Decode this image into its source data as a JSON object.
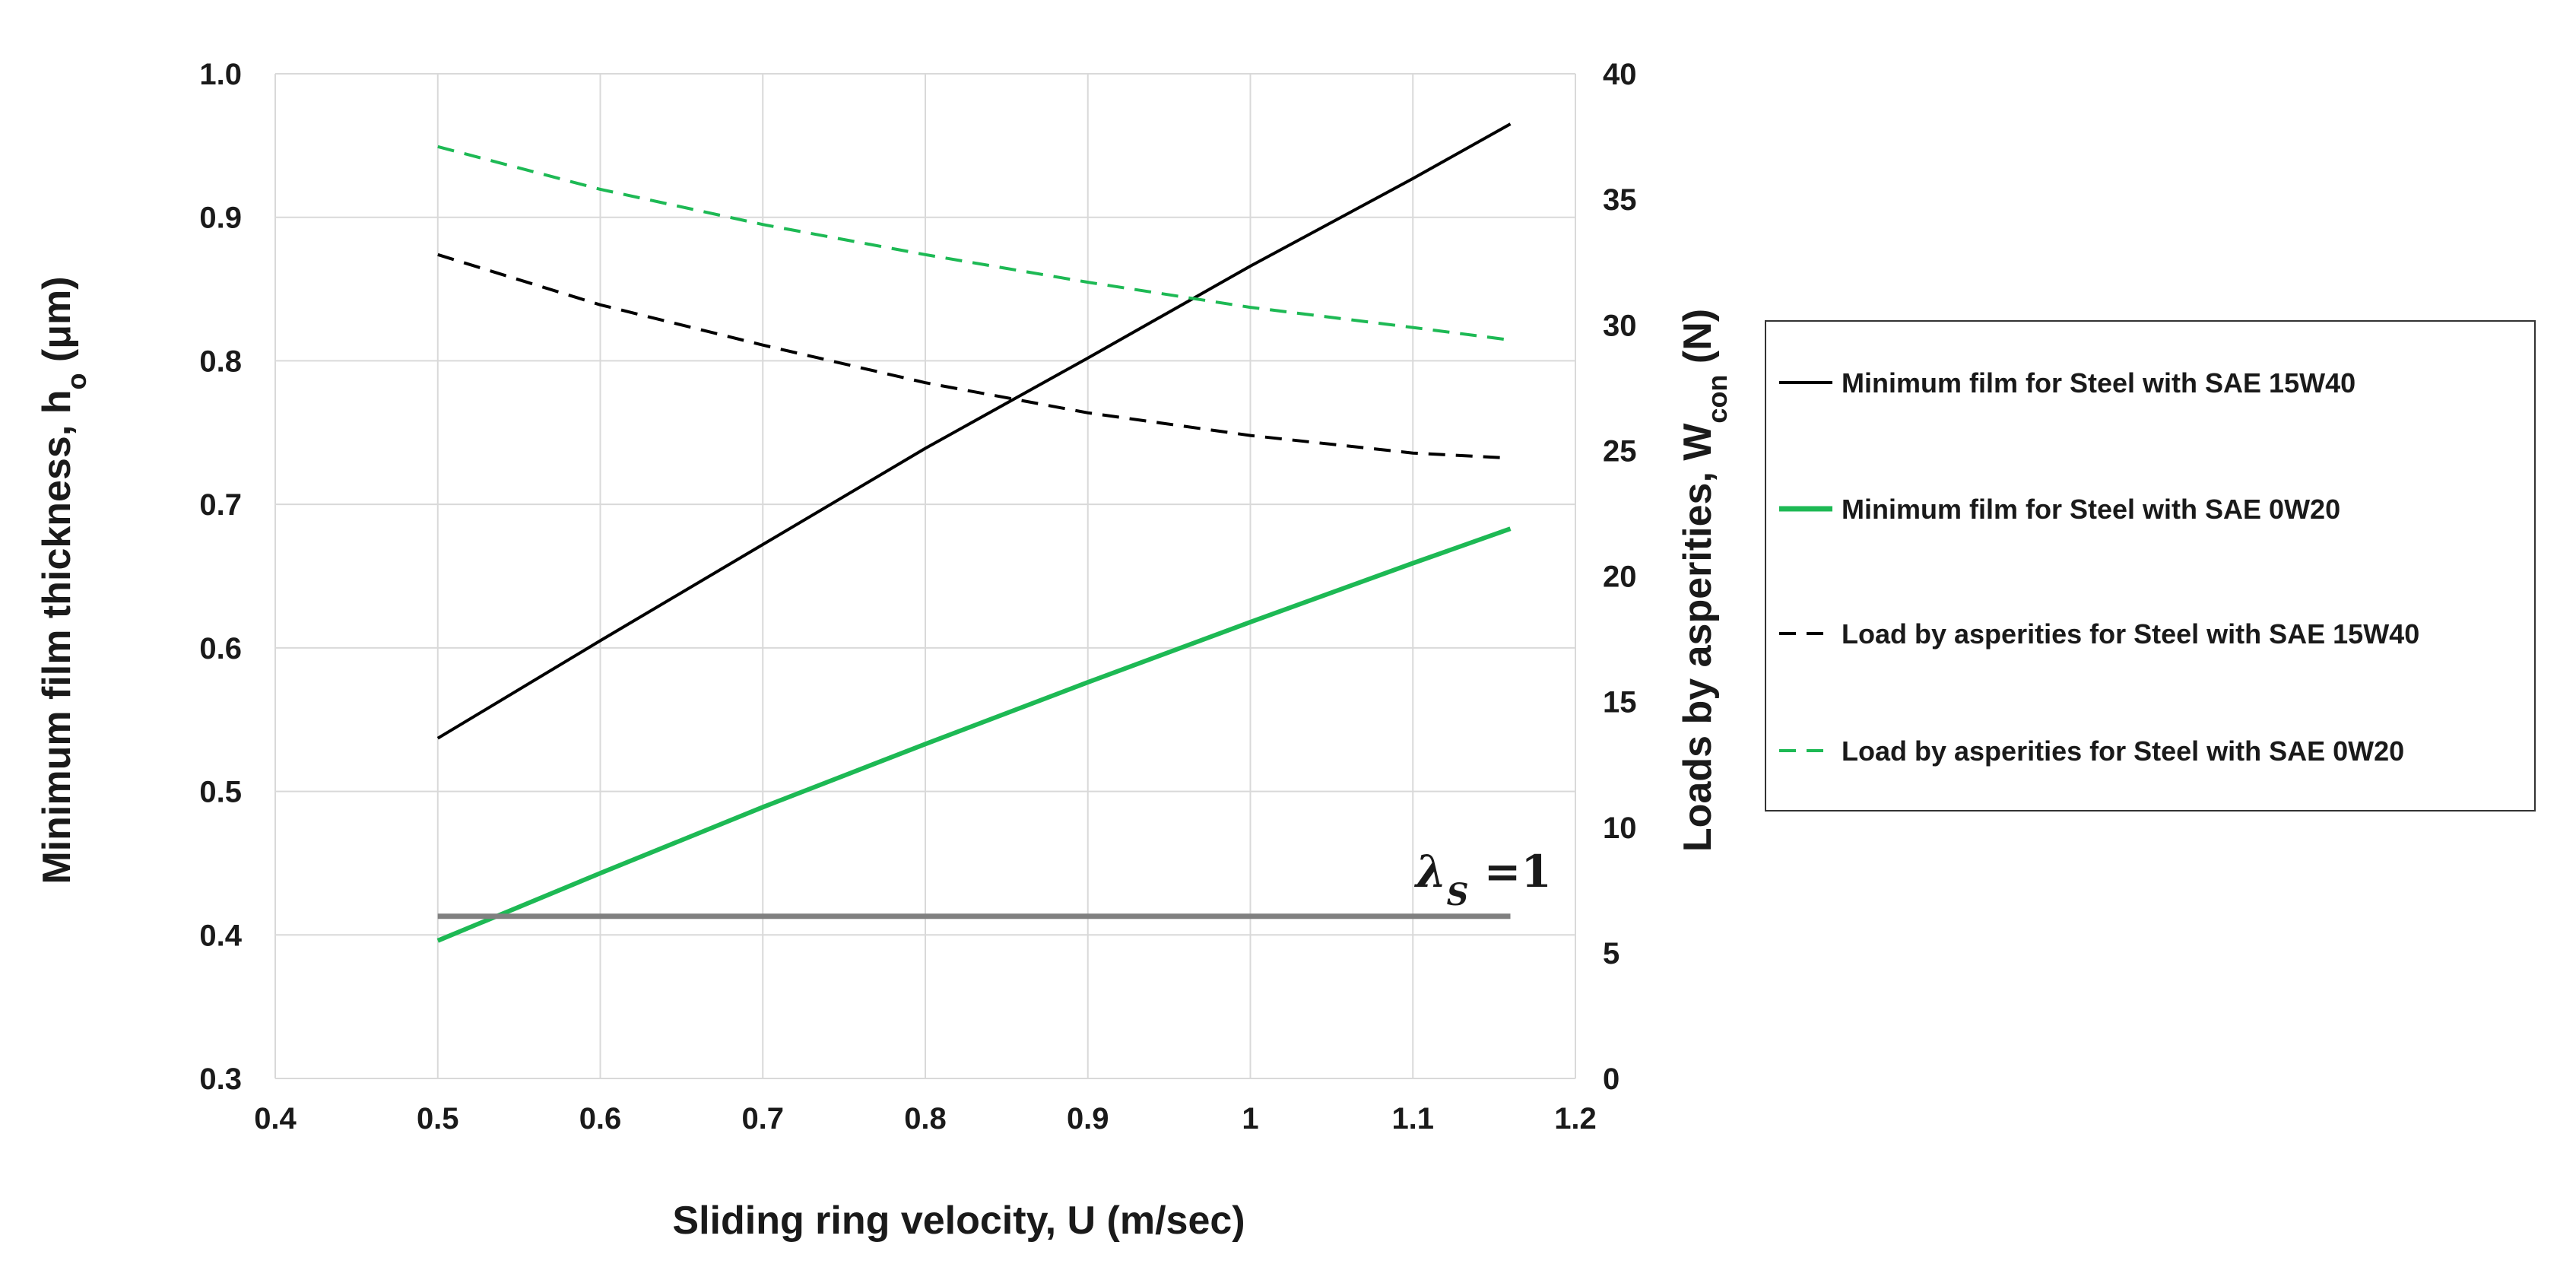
{
  "chart_data": {
    "type": "line",
    "title": "",
    "xlabel": "Sliding ring velocity, U (m/sec)",
    "ylabel_left": {
      "main": "Minimum film thickness, h",
      "sub": "o",
      "tail": " (μm)"
    },
    "ylabel_right": {
      "main": "Loads by asperities, W",
      "sub": "con",
      "tail": " (N)"
    },
    "xlim": [
      0.4,
      1.2
    ],
    "ylim_left": [
      0.3,
      1.0
    ],
    "ylim_right": [
      0,
      40
    ],
    "x_ticks": [
      "0.4",
      "0.5",
      "0.6",
      "0.7",
      "0.8",
      "0.9",
      "1",
      "1.1",
      "1.2"
    ],
    "y_left_ticks": [
      "0.3",
      "0.4",
      "0.5",
      "0.6",
      "0.7",
      "0.8",
      "0.9",
      "1.0"
    ],
    "y_right_ticks": [
      "0",
      "5",
      "10",
      "15",
      "20",
      "25",
      "30",
      "35",
      "40"
    ],
    "grid": true,
    "legend_position": "right",
    "series": [
      {
        "name": "Minimum film for Steel with SAE 15W40",
        "axis": "left",
        "color": "#000000",
        "style": "solid",
        "x": [
          0.5,
          0.6,
          0.7,
          0.8,
          0.9,
          1.0,
          1.1,
          1.16
        ],
        "y": [
          0.537,
          0.605,
          0.672,
          0.739,
          0.802,
          0.866,
          0.927,
          0.965
        ]
      },
      {
        "name": "Minimum film for Steel with SAE 0W20",
        "axis": "left",
        "color": "#1db954",
        "style": "solid",
        "x": [
          0.5,
          0.6,
          0.7,
          0.8,
          0.9,
          1.0,
          1.1,
          1.16
        ],
        "y": [
          0.396,
          0.443,
          0.489,
          0.533,
          0.576,
          0.618,
          0.659,
          0.683
        ]
      },
      {
        "name": "Load by asperities for Steel with SAE 15W40",
        "axis": "right",
        "color": "#000000",
        "style": "dashed",
        "x": [
          0.5,
          0.6,
          0.7,
          0.8,
          0.9,
          1.0,
          1.1,
          1.16
        ],
        "y": [
          32.8,
          30.8,
          29.2,
          27.7,
          26.5,
          25.6,
          24.9,
          24.7
        ]
      },
      {
        "name": "Load by asperities for Steel with SAE 0W20",
        "axis": "right",
        "color": "#1db954",
        "style": "dashed",
        "x": [
          0.5,
          0.6,
          0.7,
          0.8,
          0.9,
          1.0,
          1.1,
          1.16
        ],
        "y": [
          37.1,
          35.4,
          34.0,
          32.8,
          31.7,
          30.7,
          29.9,
          29.4
        ]
      }
    ],
    "reference_line": {
      "label_symbol": "λ",
      "label_sub": "S",
      "label_value": " =1",
      "axis": "left",
      "y": 0.413,
      "x": [
        0.5,
        1.16
      ],
      "color": "#808080"
    }
  }
}
